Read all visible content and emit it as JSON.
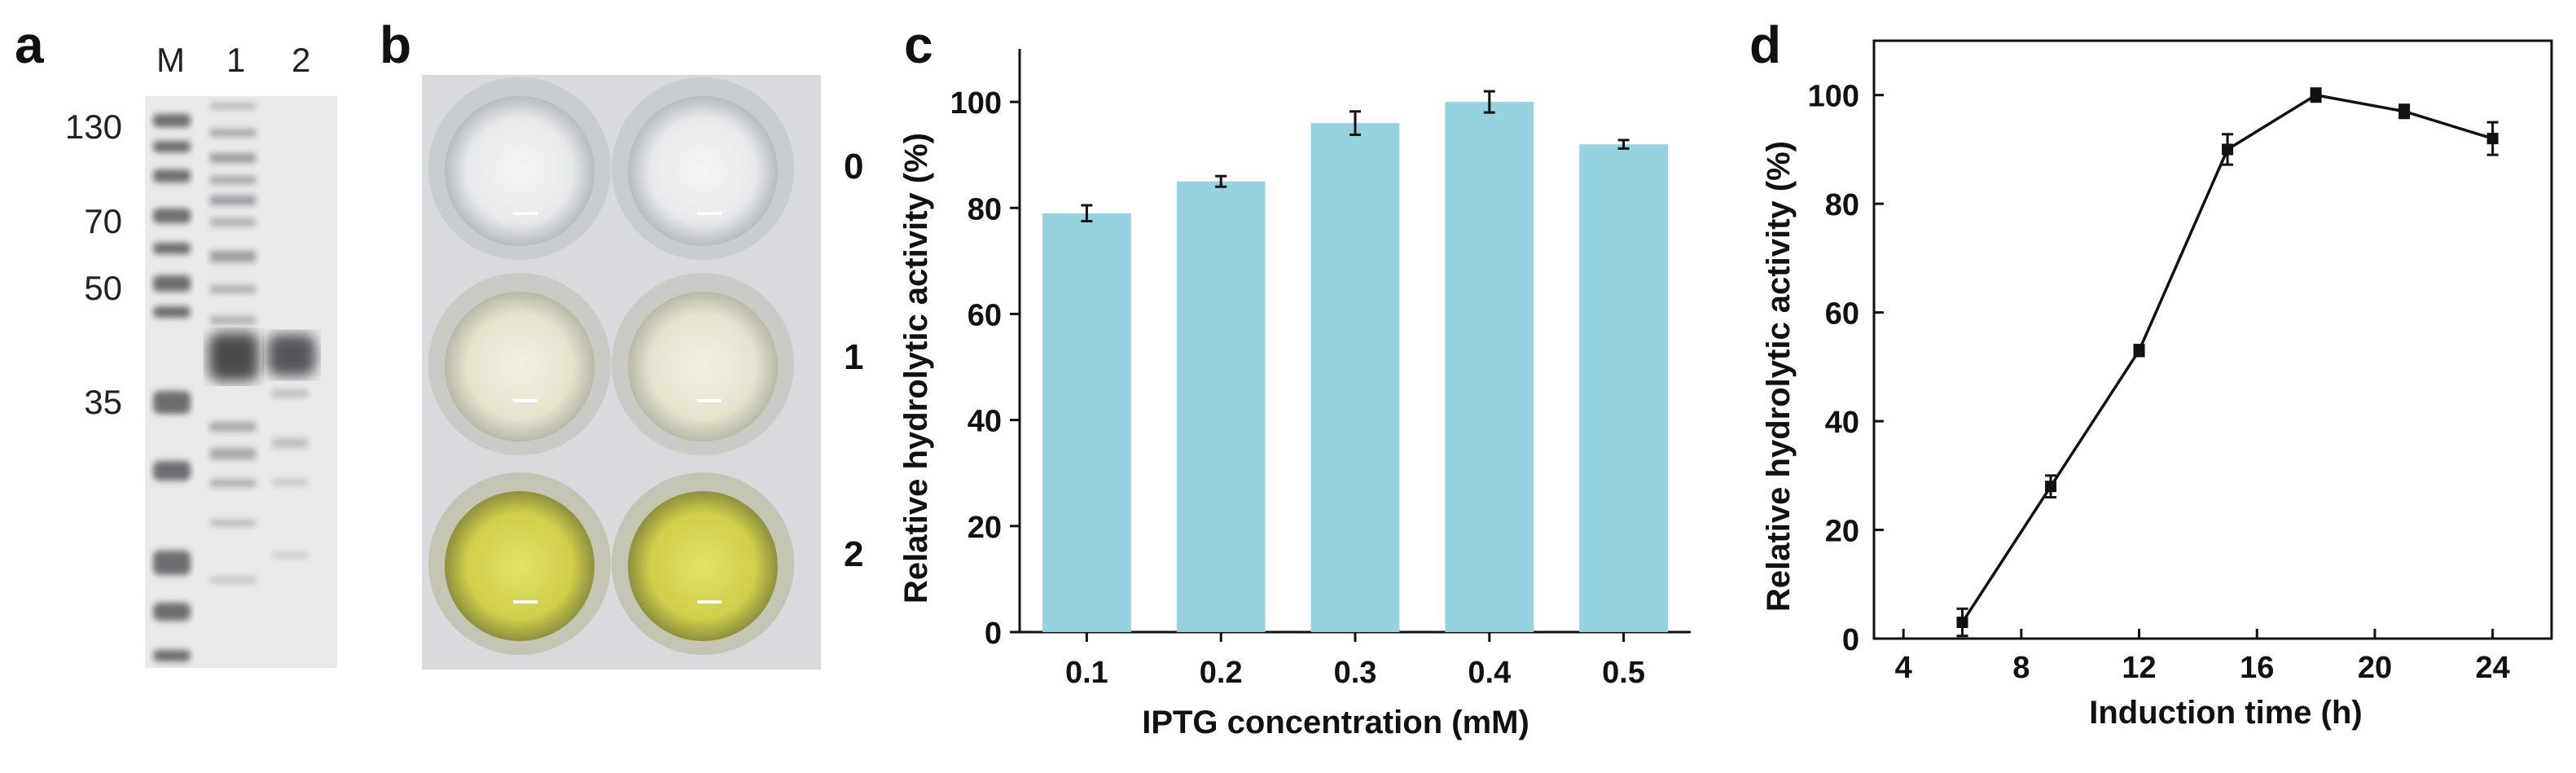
{
  "panels": {
    "a": "a",
    "b": "b",
    "c": "c",
    "d": "d"
  },
  "gel": {
    "lanes": [
      "M",
      "1",
      "2"
    ],
    "markers": [
      "130",
      "70",
      "50",
      "35"
    ]
  },
  "plate": {
    "rows": [
      "0",
      "1",
      "2"
    ]
  },
  "chart_data": [
    {
      "type": "bar",
      "panel": "c",
      "categories": [
        "0.1",
        "0.2",
        "0.3",
        "0.4",
        "0.5"
      ],
      "values": [
        79,
        85,
        96,
        100,
        92
      ],
      "errors": [
        1.5,
        1.0,
        2.2,
        2.0,
        0.8
      ],
      "xlabel": "IPTG concentration (mM)",
      "ylabel": "Relative hydrolytic activity (%)",
      "ylim": [
        0,
        110
      ],
      "yticks": [
        "0",
        "20",
        "40",
        "60",
        "80",
        "100"
      ],
      "bar_color": "#96d3e0"
    },
    {
      "type": "line",
      "panel": "d",
      "x": [
        6,
        9,
        12,
        15,
        18,
        21,
        24
      ],
      "y": [
        3,
        28,
        53,
        90,
        100,
        97,
        92
      ],
      "errors": [
        2.5,
        2.0,
        1.0,
        2.8,
        1.2,
        1.2,
        3.0
      ],
      "xlabel": "Induction time (h)",
      "ylabel": "Relative hydrolytic activity (%)",
      "xlim": [
        3,
        26
      ],
      "ylim": [
        0,
        110
      ],
      "xticks": [
        "4",
        "8",
        "12",
        "16",
        "20",
        "24"
      ],
      "yticks": [
        "0",
        "20",
        "40",
        "60",
        "80",
        "100"
      ],
      "line_color": "#111111"
    }
  ]
}
